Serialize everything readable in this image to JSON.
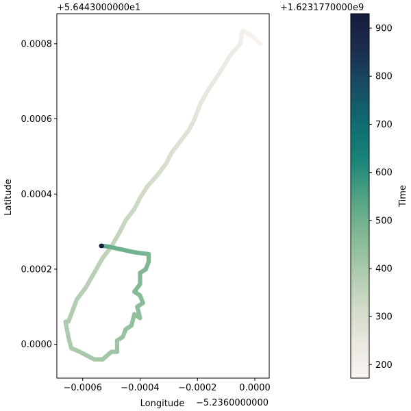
{
  "chart_data": {
    "type": "scatter",
    "title": "",
    "xlabel": "Longitude",
    "ylabel": "Latitude",
    "x_offset_text": "−5.2360000000",
    "y_offset_text": "+5.6443000000e1",
    "xlim": [
      -0.00069,
      5e-05
    ],
    "ylim": [
      -9e-05,
      0.00088
    ],
    "xticks": [
      -0.0006,
      -0.0004,
      -0.0002,
      0.0
    ],
    "xtick_labels": [
      "−0.0006",
      "−0.0004",
      "−0.0002",
      "0.0000"
    ],
    "yticks": [
      0.0,
      0.0002,
      0.0004,
      0.0006,
      0.0008
    ],
    "ytick_labels": [
      "0.0000",
      "0.0002",
      "0.0004",
      "0.0006",
      "0.0008"
    ],
    "grid": false,
    "colormap": "gist_earth_r-like",
    "colorbar": {
      "label": "Time",
      "offset_text": "+1.6231770000e9",
      "range": [
        172,
        930
      ],
      "ticks": [
        200,
        300,
        400,
        500,
        600,
        700,
        800,
        900
      ],
      "tick_labels": [
        "200",
        "300",
        "400",
        "500",
        "600",
        "700",
        "800",
        "900"
      ],
      "colors": [
        "#fbf4f1",
        "#e9e7df",
        "#cfdac6",
        "#a9c9ab",
        "#7fb792",
        "#4fa283",
        "#1a8479",
        "#0f6b71",
        "#184d63",
        "#1b2d4e",
        "#151c3c"
      ]
    },
    "series": [
      {
        "points": [
          {
            "x": 2e-05,
            "y": 0.0008,
            "t": 175
          },
          {
            "x": -1e-05,
            "y": 0.00082,
            "t": 185
          },
          {
            "x": -4e-05,
            "y": 0.000835,
            "t": 195
          },
          {
            "x": -4.5e-05,
            "y": 0.00083,
            "t": 205
          },
          {
            "x": -5e-05,
            "y": 0.0008,
            "t": 215
          },
          {
            "x": -8.5e-05,
            "y": 0.00077,
            "t": 225
          },
          {
            "x": -0.000125,
            "y": 0.00072,
            "t": 235
          },
          {
            "x": -0.00016,
            "y": 0.00068,
            "t": 245
          },
          {
            "x": -0.00019,
            "y": 0.00064,
            "t": 255
          },
          {
            "x": -0.00021,
            "y": 0.0006,
            "t": 265
          },
          {
            "x": -0.00023,
            "y": 0.00057,
            "t": 272
          },
          {
            "x": -0.00026,
            "y": 0.00054,
            "t": 280
          },
          {
            "x": -0.00029,
            "y": 0.00051,
            "t": 288
          },
          {
            "x": -0.00031,
            "y": 0.00048,
            "t": 296
          },
          {
            "x": -0.00034,
            "y": 0.00045,
            "t": 304
          },
          {
            "x": -0.000375,
            "y": 0.00042,
            "t": 312
          },
          {
            "x": -0.0004,
            "y": 0.00039,
            "t": 320
          },
          {
            "x": -0.00042,
            "y": 0.00036,
            "t": 328
          },
          {
            "x": -0.00045,
            "y": 0.00033,
            "t": 336
          },
          {
            "x": -0.00047,
            "y": 0.0003,
            "t": 344
          },
          {
            "x": -0.0005,
            "y": 0.00026,
            "t": 352
          },
          {
            "x": -0.00053,
            "y": 0.00023,
            "t": 358
          },
          {
            "x": -0.00056,
            "y": 0.00019,
            "t": 364
          },
          {
            "x": -0.00059,
            "y": 0.00015,
            "t": 370
          },
          {
            "x": -0.00062,
            "y": 0.00012,
            "t": 376
          },
          {
            "x": -0.00063,
            "y": 0.0001,
            "t": 380
          },
          {
            "x": -0.00065,
            "y": 6e-05,
            "t": 385
          },
          {
            "x": -0.00066,
            "y": 6e-05,
            "t": 388
          },
          {
            "x": -0.00065,
            "y": 2e-05,
            "t": 392
          },
          {
            "x": -0.00064,
            "y": -1e-05,
            "t": 396
          },
          {
            "x": -0.00061,
            "y": -2e-05,
            "t": 400
          },
          {
            "x": -0.00056,
            "y": -4e-05,
            "t": 405
          },
          {
            "x": -0.00053,
            "y": -4e-05,
            "t": 410
          },
          {
            "x": -0.0005,
            "y": -2e-05,
            "t": 415
          },
          {
            "x": -0.00048,
            "y": -2e-05,
            "t": 420
          },
          {
            "x": -0.00048,
            "y": 1e-05,
            "t": 424
          },
          {
            "x": -0.00046,
            "y": 2e-05,
            "t": 428
          },
          {
            "x": -0.00045,
            "y": 4e-05,
            "t": 432
          },
          {
            "x": -0.00043,
            "y": 5e-05,
            "t": 436
          },
          {
            "x": -0.00042,
            "y": 8e-05,
            "t": 440
          },
          {
            "x": -0.0004,
            "y": 7e-05,
            "t": 444
          },
          {
            "x": -0.00041,
            "y": 0.0001,
            "t": 448
          },
          {
            "x": -0.00039,
            "y": 0.00011,
            "t": 452
          },
          {
            "x": -0.0004,
            "y": 0.00013,
            "t": 456
          },
          {
            "x": -0.00042,
            "y": 0.00014,
            "t": 460
          },
          {
            "x": -0.0004,
            "y": 0.00016,
            "t": 464
          },
          {
            "x": -0.0004,
            "y": 0.00019,
            "t": 468
          },
          {
            "x": -0.00038,
            "y": 0.0002,
            "t": 472
          },
          {
            "x": -0.00037,
            "y": 0.00022,
            "t": 476
          },
          {
            "x": -0.00037,
            "y": 0.00024,
            "t": 480
          },
          {
            "x": -0.00039,
            "y": 0.000242,
            "t": 486
          },
          {
            "x": -0.00042,
            "y": 0.000245,
            "t": 492
          },
          {
            "x": -0.00045,
            "y": 0.00025,
            "t": 498
          },
          {
            "x": -0.00048,
            "y": 0.000255,
            "t": 504
          },
          {
            "x": -0.00051,
            "y": 0.00026,
            "t": 512
          },
          {
            "x": -0.00053,
            "y": 0.000262,
            "t": 520
          },
          {
            "x": -0.000535,
            "y": 0.000262,
            "t": 928
          }
        ]
      }
    ]
  }
}
